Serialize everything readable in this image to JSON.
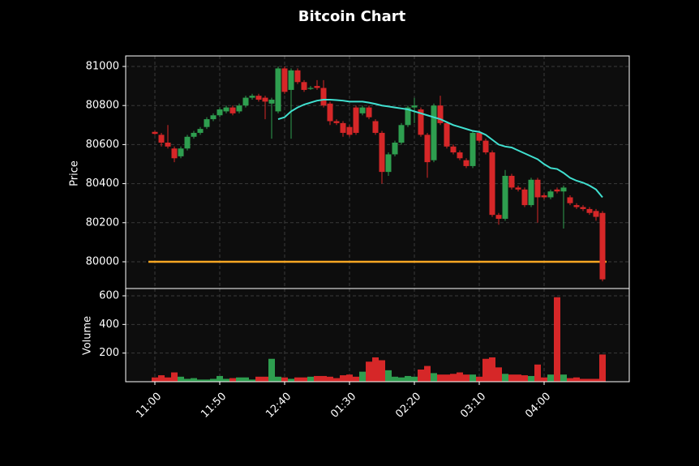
{
  "chart_data": {
    "type": "candlestick",
    "title": "Bitcoin Chart",
    "ylabel": "Price",
    "categories": [
      "11:00",
      null,
      null,
      null,
      null,
      null,
      null,
      null,
      null,
      null,
      "11:50",
      null,
      null,
      null,
      null,
      null,
      null,
      null,
      null,
      null,
      "12:40",
      null,
      null,
      null,
      null,
      null,
      null,
      null,
      null,
      null,
      "01:30",
      null,
      null,
      null,
      null,
      null,
      null,
      null,
      null,
      null,
      "02:20",
      null,
      null,
      null,
      null,
      null,
      null,
      null,
      null,
      null,
      "03:10",
      null,
      null,
      null,
      null,
      null,
      null,
      null,
      null,
      null,
      "04:00",
      null,
      null,
      null,
      null,
      null,
      null,
      null,
      null,
      null
    ],
    "open": [
      80665,
      80650,
      80610,
      80580,
      80540,
      80580,
      80640,
      80660,
      80690,
      80730,
      80750,
      80770,
      80790,
      80770,
      80800,
      80840,
      80850,
      80840,
      80810,
      80770,
      80990,
      80880,
      80980,
      80920,
      80885,
      80900,
      80890,
      80810,
      80720,
      80710,
      80690,
      80790,
      80760,
      80790,
      80720,
      80660,
      80460,
      80550,
      80610,
      80700,
      80790,
      80780,
      80650,
      80520,
      80800,
      80710,
      80590,
      80560,
      80520,
      80490,
      80660,
      80620,
      80560,
      80240,
      80220,
      80440,
      80380,
      80370,
      80290,
      80420,
      80340,
      80330,
      80370,
      80360,
      80330,
      80290,
      80280,
      80270,
      80260,
      80250
    ],
    "high": [
      80670,
      80660,
      80700,
      80590,
      80590,
      80650,
      80670,
      80690,
      80740,
      80760,
      80790,
      80800,
      80800,
      80810,
      80850,
      80860,
      80860,
      80850,
      80840,
      81000,
      81000,
      80990,
      80990,
      80930,
      80900,
      80930,
      80930,
      80820,
      80730,
      80720,
      80700,
      80800,
      80800,
      80800,
      80730,
      80670,
      80560,
      80620,
      80710,
      80800,
      80840,
      80790,
      80660,
      80810,
      80850,
      80720,
      80600,
      80570,
      80530,
      80670,
      80670,
      80630,
      80570,
      80250,
      80470,
      80450,
      80390,
      80380,
      80430,
      80430,
      80350,
      80370,
      80380,
      80390,
      80340,
      80300,
      80290,
      80280,
      80270,
      80260
    ],
    "low": [
      80650,
      80590,
      80580,
      80510,
      80530,
      80570,
      80630,
      80650,
      80680,
      80720,
      80740,
      80760,
      80750,
      80760,
      80790,
      80830,
      80820,
      80730,
      80630,
      80760,
      80860,
      80630,
      80910,
      80870,
      80880,
      80880,
      80790,
      80700,
      80700,
      80640,
      80640,
      80650,
      80750,
      80730,
      80650,
      80400,
      80440,
      80540,
      80600,
      80690,
      80710,
      80640,
      80430,
      80510,
      80700,
      80580,
      80550,
      80520,
      80480,
      80480,
      80610,
      80550,
      80230,
      80190,
      80210,
      80370,
      80360,
      80280,
      80280,
      80200,
      80320,
      80320,
      80350,
      80170,
      80290,
      80270,
      80260,
      80240,
      80210,
      79900
    ],
    "close": [
      80655,
      80610,
      80590,
      80530,
      80580,
      80640,
      80660,
      80680,
      80730,
      80750,
      80780,
      80790,
      80760,
      80800,
      80840,
      80850,
      80830,
      80820,
      80830,
      80990,
      80870,
      80980,
      80920,
      80880,
      80890,
      80890,
      80800,
      80720,
      80710,
      80660,
      80650,
      80660,
      80790,
      80740,
      80660,
      80460,
      80550,
      80610,
      80700,
      80790,
      80800,
      80650,
      80510,
      80800,
      80710,
      80590,
      80560,
      80530,
      80490,
      80660,
      80620,
      80560,
      80240,
      80220,
      80440,
      80380,
      80370,
      80290,
      80420,
      80330,
      80330,
      80360,
      80360,
      80380,
      80300,
      80280,
      80270,
      80250,
      80230,
      79910
    ],
    "up_color": "#2e9e4f",
    "down_color": "#d62728",
    "ma": {
      "color": "#40e0d0",
      "values": [
        null,
        null,
        null,
        null,
        null,
        null,
        null,
        null,
        null,
        null,
        null,
        null,
        null,
        null,
        null,
        null,
        null,
        null,
        null,
        80730,
        80740,
        80770,
        80790,
        80805,
        80815,
        80825,
        80830,
        80830,
        80828,
        80825,
        80820,
        80820,
        80820,
        80815,
        80808,
        80800,
        80795,
        80790,
        80785,
        80780,
        80770,
        80760,
        80750,
        80740,
        80730,
        80715,
        80700,
        80690,
        80680,
        80670,
        80665,
        80650,
        80625,
        80600,
        80590,
        80585,
        80570,
        80555,
        80540,
        80525,
        80500,
        80480,
        80475,
        80455,
        80430,
        80415,
        80405,
        80390,
        80370,
        80330
      ]
    },
    "hline": {
      "value": 80000,
      "color": "#f5a623"
    },
    "ylim": [
      79863,
      81054
    ],
    "yticks": [
      80000,
      80200,
      80400,
      80600,
      80800,
      81000
    ],
    "grid": true,
    "volume": {
      "ylabel": "Volume",
      "values": [
        30,
        45,
        30,
        65,
        35,
        20,
        25,
        15,
        15,
        20,
        40,
        20,
        25,
        30,
        30,
        15,
        35,
        35,
        160,
        35,
        30,
        20,
        30,
        30,
        35,
        40,
        40,
        35,
        25,
        45,
        50,
        35,
        70,
        140,
        170,
        150,
        80,
        35,
        30,
        40,
        35,
        85,
        110,
        60,
        50,
        50,
        55,
        65,
        50,
        50,
        35,
        160,
        170,
        100,
        55,
        50,
        50,
        45,
        40,
        120,
        30,
        50,
        590,
        50,
        25,
        30,
        20,
        20,
        20,
        190
      ],
      "ylim": [
        0,
        651
      ],
      "yticks": [
        200,
        400,
        600
      ]
    }
  }
}
